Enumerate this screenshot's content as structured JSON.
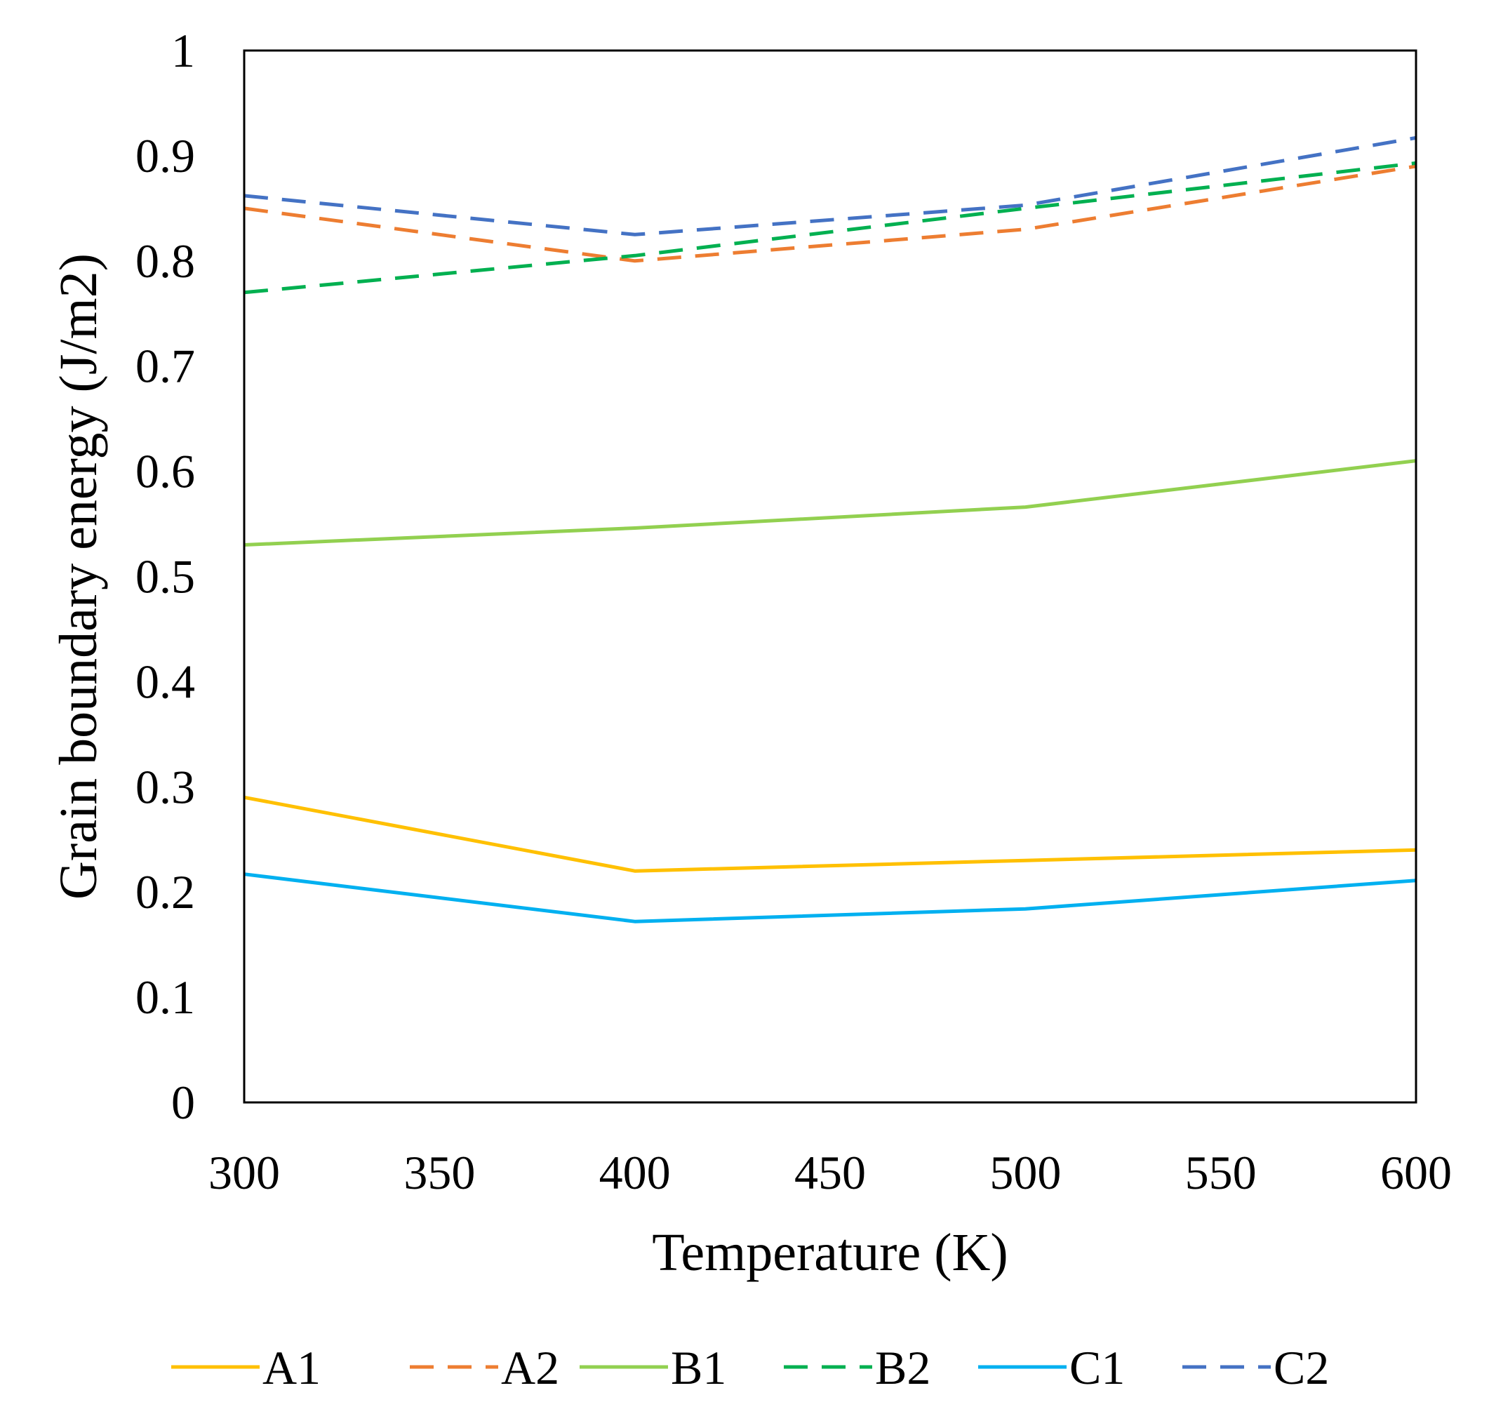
{
  "chart_data": {
    "type": "line",
    "title": "",
    "xlabel": "Temperature (K)",
    "ylabel": "Grain boundary energy (J/m2)",
    "xlim": [
      300,
      600
    ],
    "ylim": [
      0,
      1
    ],
    "x_ticks": [
      "300",
      "350",
      "400",
      "450",
      "500",
      "550",
      "600"
    ],
    "y_ticks": [
      "0",
      "0.1",
      "0.2",
      "0.3",
      "0.4",
      "0.5",
      "0.6",
      "0.7",
      "0.8",
      "0.9",
      "1"
    ],
    "grid": false,
    "legend_position": "bottom",
    "x": [
      300,
      400,
      500,
      600
    ],
    "series": [
      {
        "name": "A1",
        "values": [
          0.29,
          0.22,
          0.23,
          0.24
        ],
        "color": "#FFC000",
        "dash": "solid"
      },
      {
        "name": "A2",
        "values": [
          0.85,
          0.8,
          0.83,
          0.89
        ],
        "color": "#ED7D31",
        "dash": "dashed"
      },
      {
        "name": "B1",
        "values": [
          0.53,
          0.546,
          0.566,
          0.61
        ],
        "color": "#92D050",
        "dash": "solid"
      },
      {
        "name": "B2",
        "values": [
          0.77,
          0.805,
          0.85,
          0.893
        ],
        "color": "#00B050",
        "dash": "dashed"
      },
      {
        "name": "C1",
        "values": [
          0.217,
          0.172,
          0.184,
          0.211
        ],
        "color": "#00B0F0",
        "dash": "solid"
      },
      {
        "name": "C2",
        "values": [
          0.862,
          0.825,
          0.853,
          0.917
        ],
        "color": "#4472C4",
        "dash": "dashed"
      }
    ]
  }
}
